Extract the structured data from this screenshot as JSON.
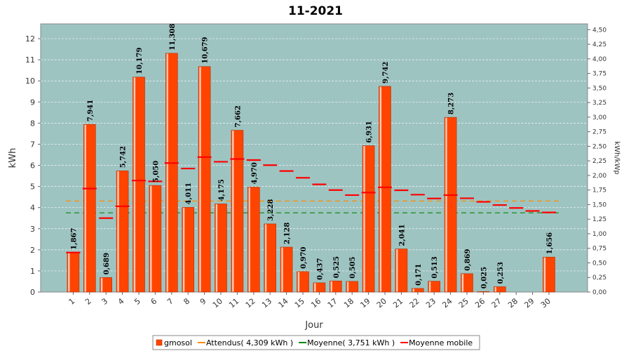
{
  "chart_data": {
    "type": "bar",
    "title": "11-2021",
    "xlabel": "Jour",
    "ylabel": "kWh",
    "y2label": "kWh/kWp",
    "ylim": [
      0,
      12.7
    ],
    "y2lim": [
      0,
      4.6
    ],
    "yticks": [
      "0",
      "1",
      "2",
      "3",
      "4",
      "5",
      "6",
      "7",
      "8",
      "9",
      "10",
      "11",
      "12"
    ],
    "y2ticks": [
      "0,00",
      "0,25",
      "0,50",
      "0,75",
      "1,00",
      "1,25",
      "1,50",
      "1,75",
      "2,00",
      "2,25",
      "2,50",
      "2,75",
      "3,00",
      "3,25",
      "3,50",
      "3,75",
      "4,00",
      "4,25",
      "4,50"
    ],
    "grid": true,
    "legend_position": "bottom",
    "categories": [
      "1",
      "2",
      "3",
      "4",
      "5",
      "6",
      "7",
      "8",
      "9",
      "10",
      "11",
      "12",
      "13",
      "14",
      "15",
      "16",
      "17",
      "18",
      "19",
      "20",
      "21",
      "22",
      "23",
      "24",
      "25",
      "26",
      "27",
      "28",
      "29",
      "30"
    ],
    "series": [
      {
        "name": "gmosol",
        "type": "bar",
        "color": "#ff4400",
        "values": [
          1.867,
          7.941,
          0.689,
          5.742,
          10.179,
          5.05,
          11.308,
          4.011,
          10.679,
          4.175,
          7.662,
          4.97,
          3.228,
          2.128,
          0.97,
          0.437,
          0.525,
          0.505,
          6.931,
          9.742,
          2.041,
          0.171,
          0.513,
          8.273,
          0.869,
          0.025,
          0.253,
          null,
          null,
          1.656
        ],
        "labels": [
          "1,867",
          "7,941",
          "0,689",
          "5,742",
          "10,179",
          "5,050",
          "11,308",
          "4,011",
          "10,679",
          "4,175",
          "7,662",
          "4,970",
          "3,228",
          "2,128",
          "0,970",
          "0,437",
          "0,525",
          "0,505",
          "6,931",
          "9,742",
          "2,041",
          "0,171",
          "0,513",
          "8,273",
          "0,869",
          "0,025",
          "0,253",
          "",
          "",
          "1,656"
        ]
      },
      {
        "name": "Attendus( 4,309 kWh )",
        "type": "hline",
        "color": "#ff8c00",
        "value": 4.309
      },
      {
        "name": "Moyenne( 3,751 kWh )",
        "type": "hline",
        "color": "#008800",
        "value": 3.751
      },
      {
        "name": "Moyenne mobile",
        "type": "marker",
        "color": "#ff0000",
        "values": [
          1.87,
          4.9,
          3.5,
          4.06,
          5.28,
          5.24,
          6.11,
          5.85,
          6.39,
          6.17,
          6.3,
          6.25,
          6.01,
          5.73,
          5.41,
          5.1,
          4.83,
          4.59,
          4.71,
          4.96,
          4.82,
          4.61,
          4.43,
          4.59,
          4.44,
          4.27,
          4.12,
          3.98,
          3.84,
          3.77
        ]
      }
    ]
  }
}
